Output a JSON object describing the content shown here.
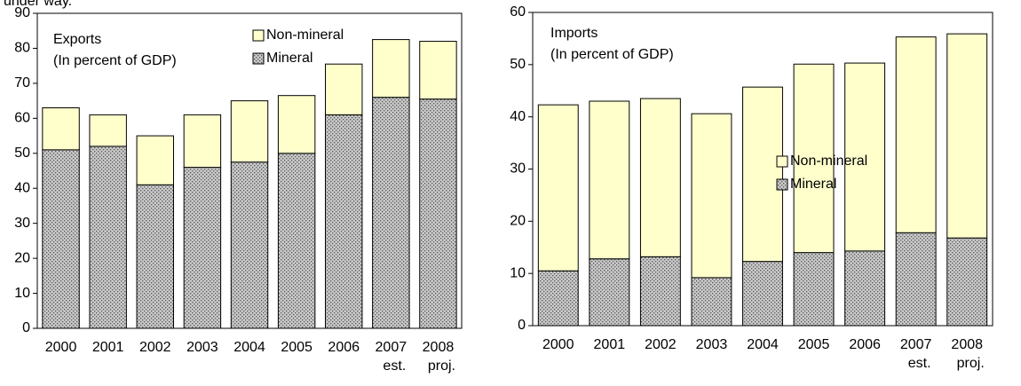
{
  "caption_fragment": "under way.",
  "chart_data": [
    {
      "type": "stacked_bar",
      "title": "Exports",
      "subtitle": "(In percent of GDP)",
      "categories": [
        "2000",
        "2001",
        "2002",
        "2003",
        "2004",
        "2005",
        "2006",
        "2007",
        "2008"
      ],
      "category_notes": [
        null,
        null,
        null,
        null,
        null,
        null,
        null,
        "est.",
        "proj."
      ],
      "series": [
        {
          "name": "Mineral",
          "color": "#c0c0c0",
          "values": [
            51,
            52,
            41,
            46,
            47.5,
            50,
            61,
            66,
            65.5
          ]
        },
        {
          "name": "Non-mineral",
          "color": "#ffffcc",
          "values": [
            12,
            9,
            14,
            15,
            17.5,
            16.5,
            14.5,
            16.5,
            16.5
          ]
        }
      ],
      "ylim": [
        0,
        90
      ],
      "yticks": [
        0,
        10,
        20,
        30,
        40,
        50,
        60,
        70,
        80,
        90
      ],
      "legend": "upper right"
    },
    {
      "type": "stacked_bar",
      "title": "Imports",
      "subtitle": "(In percent of GDP)",
      "categories": [
        "2000",
        "2001",
        "2002",
        "2003",
        "2004",
        "2005",
        "2006",
        "2007",
        "2008"
      ],
      "category_notes": [
        null,
        null,
        null,
        null,
        null,
        null,
        null,
        "est.",
        "proj."
      ],
      "series": [
        {
          "name": "Mineral",
          "color": "#c0c0c0",
          "values": [
            10.5,
            12.8,
            13.2,
            9.2,
            12.3,
            14,
            14.3,
            17.8,
            16.8
          ]
        },
        {
          "name": "Non-mineral",
          "color": "#ffffcc",
          "values": [
            31.8,
            30.2,
            30.3,
            31.4,
            33.4,
            36.1,
            36,
            37.5,
            39.1
          ]
        }
      ],
      "ylim": [
        0,
        60
      ],
      "yticks": [
        0,
        10,
        20,
        30,
        40,
        50,
        60
      ],
      "legend": "center"
    }
  ]
}
